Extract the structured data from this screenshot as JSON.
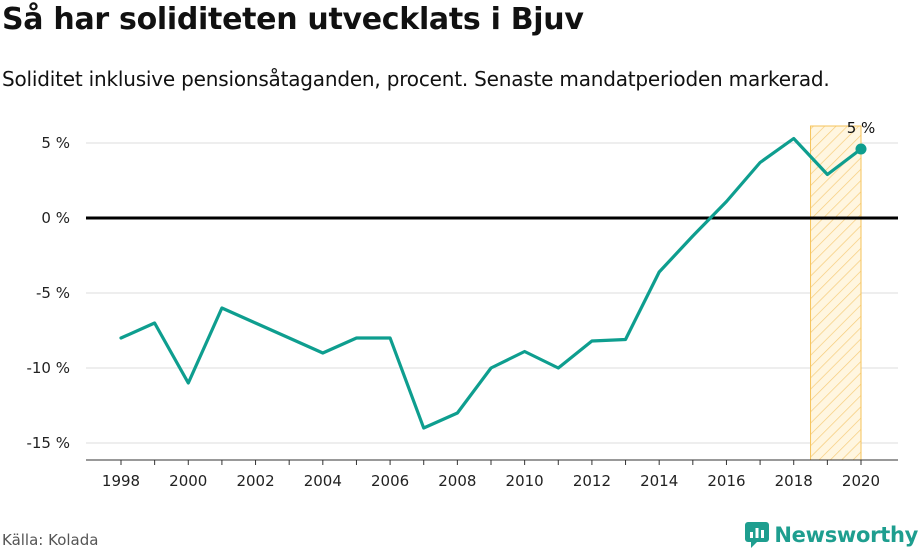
{
  "header": {
    "title": "Så har soliditeten utvecklats i Bjuv",
    "subtitle": "Soliditet inklusive pensionsåtaganden, procent. Senaste mandatperioden markerad."
  },
  "footer": {
    "source": "Källa: Kolada",
    "brand": "Newsworthy"
  },
  "colors": {
    "line": "#0e9e8f",
    "zero_line": "#000000",
    "grid": "#dcdcdc",
    "highlight_stroke": "#f6c35a",
    "highlight_fill": "#fde9b8"
  },
  "chart_data": {
    "type": "line",
    "x": [
      1998,
      1999,
      2000,
      2001,
      2002,
      2003,
      2004,
      2005,
      2006,
      2007,
      2008,
      2009,
      2010,
      2011,
      2012,
      2013,
      2014,
      2015,
      2016,
      2017,
      2018,
      2019,
      2020
    ],
    "series": [
      {
        "values": [
          -8,
          -7,
          -11,
          -6,
          -7,
          -8,
          -9,
          -8,
          -8,
          -14,
          -13,
          -10,
          -8.9,
          -10,
          -8.2,
          -8.1,
          -3.6,
          -1.2,
          1.1,
          3.7,
          5.3,
          2.9,
          4.6
        ]
      }
    ],
    "yticks": [
      5,
      0,
      -5,
      -10,
      -15
    ],
    "ytick_labels": [
      "5 %",
      "0 %",
      "-5 %",
      "-10 %",
      "-15 %"
    ],
    "xticks": [
      1998,
      2000,
      2002,
      2004,
      2006,
      2008,
      2010,
      2012,
      2014,
      2016,
      2018,
      2020
    ],
    "xtick_labels": [
      "1998",
      "2000",
      "2002",
      "2004",
      "2006",
      "2008",
      "2010",
      "2012",
      "2014",
      "2016",
      "2018",
      "2020"
    ],
    "xlim": [
      1997,
      2021
    ],
    "ylim": [
      -16,
      6
    ],
    "highlight_period": [
      2018.5,
      2020
    ],
    "last_value_label": "5 %",
    "grid": true,
    "zero_line": true
  }
}
